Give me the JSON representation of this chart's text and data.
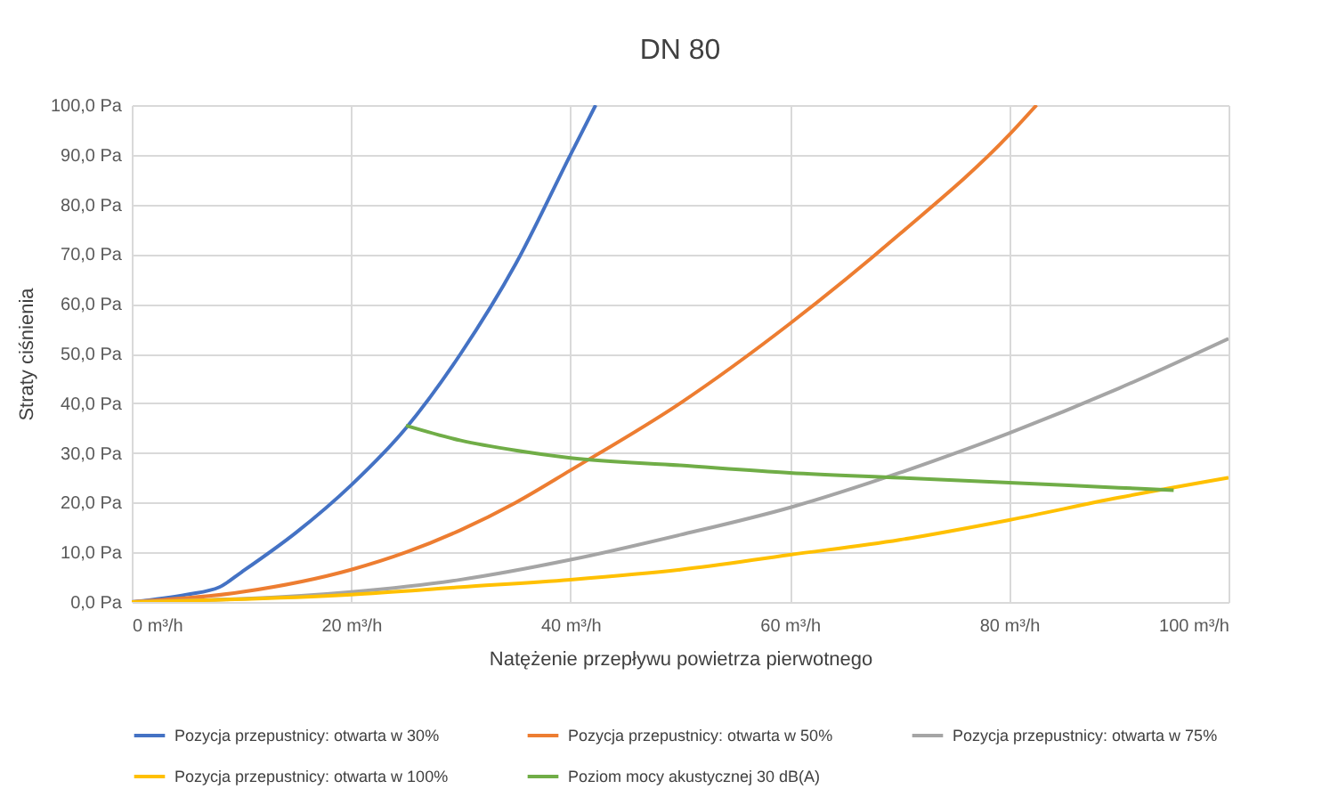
{
  "chart_data": {
    "type": "line",
    "title": "DN 80",
    "xlabel": "Natężenie przepływu powietrza pierwotnego",
    "ylabel": "Straty ciśnienia",
    "xlim": [
      0,
      100
    ],
    "ylim": [
      0,
      100
    ],
    "xticks": [
      {
        "value": 0,
        "label": "0 m³/h"
      },
      {
        "value": 20,
        "label": "20 m³/h"
      },
      {
        "value": 40,
        "label": "40 m³/h"
      },
      {
        "value": 60,
        "label": "60 m³/h"
      },
      {
        "value": 80,
        "label": "80 m³/h"
      },
      {
        "value": 100,
        "label": "100 m³/h"
      }
    ],
    "yticks": [
      {
        "value": 0,
        "label": "0,0 Pa"
      },
      {
        "value": 10,
        "label": "10,0 Pa"
      },
      {
        "value": 20,
        "label": "20,0 Pa"
      },
      {
        "value": 30,
        "label": "30,0 Pa"
      },
      {
        "value": 40,
        "label": "40,0 Pa"
      },
      {
        "value": 50,
        "label": "50,0 Pa"
      },
      {
        "value": 60,
        "label": "60,0 Pa"
      },
      {
        "value": 70,
        "label": "70,0 Pa"
      },
      {
        "value": 80,
        "label": "80,0 Pa"
      },
      {
        "value": 90,
        "label": "90,0 Pa"
      },
      {
        "value": 100,
        "label": "100,0 Pa"
      }
    ],
    "grid": true,
    "legend": "bottom",
    "marker": "none",
    "line_style": "solid",
    "series": [
      {
        "name": "Pozycja przepustnicy: otwarta w 30%",
        "color": "#4472c4",
        "x": [
          0,
          5,
          8,
          10,
          15,
          20,
          25,
          30,
          35,
          40,
          42.3
        ],
        "values": [
          0,
          1.5,
          3,
          6,
          14,
          23.5,
          35,
          50,
          68,
          90,
          100
        ]
      },
      {
        "name": "Pozycja przepustnicy: otwarta w 50%",
        "color": "#ed7d31",
        "x": [
          0,
          10,
          20,
          25,
          30,
          35,
          40,
          50,
          60,
          70,
          80,
          82.5
        ],
        "values": [
          0,
          2,
          6.5,
          10,
          14.5,
          20,
          26.5,
          40,
          56,
          74,
          94,
          100
        ]
      },
      {
        "name": "Pozycja przepustnicy: otwarta w 75%",
        "color": "#a5a5a5",
        "x": [
          0,
          20,
          30,
          40,
          50,
          60,
          70,
          80,
          90,
          100
        ],
        "values": [
          0,
          2,
          4.5,
          8.5,
          13.5,
          19,
          26,
          34,
          43,
          53
        ]
      },
      {
        "name": "Pozycja przepustnicy: otwarta w 100%",
        "color": "#ffc000",
        "x": [
          0,
          20,
          30,
          40,
          50,
          60,
          70,
          80,
          90,
          100
        ],
        "values": [
          0,
          1.5,
          3,
          4.5,
          6.5,
          9.5,
          12.5,
          16.5,
          21,
          25
        ]
      },
      {
        "name": "Poziom mocy akustycznej 30 dB(A)",
        "color": "#70ad47",
        "x": [
          25,
          30,
          35,
          40,
          50,
          60,
          70,
          80,
          90,
          95
        ],
        "values": [
          35.5,
          32.5,
          30.5,
          29,
          27.5,
          26,
          25,
          24,
          23,
          22.5
        ]
      }
    ]
  }
}
